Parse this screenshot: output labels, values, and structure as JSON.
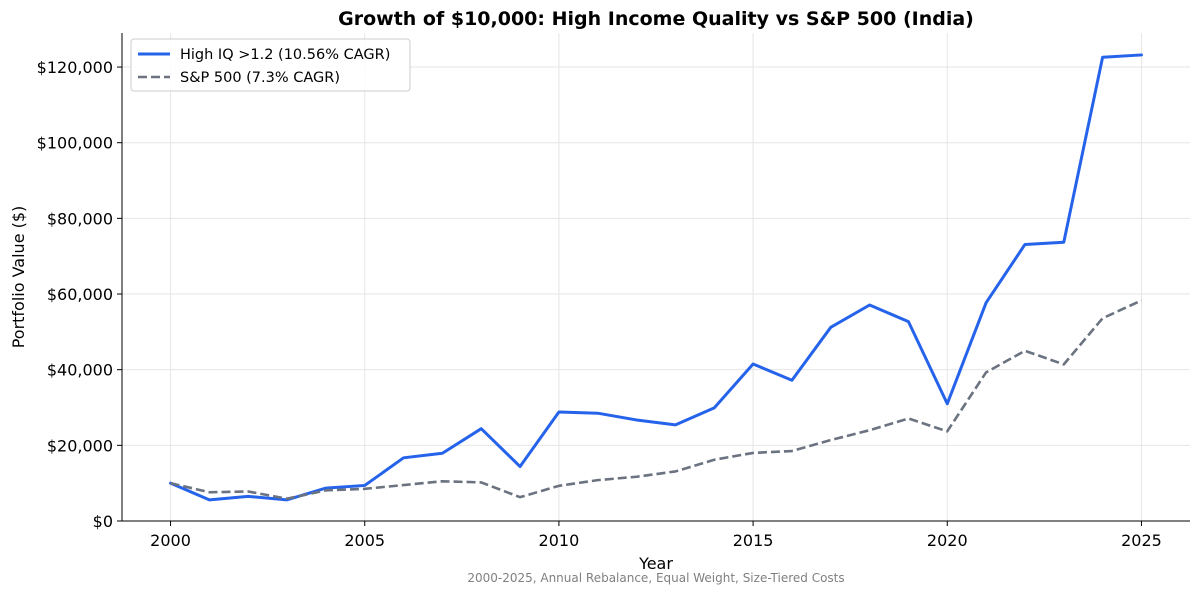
{
  "chart_data": {
    "type": "line",
    "title": "Growth of $10,000: High Income Quality vs S&P 500 (India)",
    "subtitle": "2000-2025, Annual Rebalance, Equal Weight, Size-Tiered Costs",
    "xlabel": "Year",
    "ylabel": "Portfolio Value ($)",
    "xlim": [
      1998.75,
      2026.25
    ],
    "ylim": [
      0,
      129000
    ],
    "x_ticks": [
      2000,
      2005,
      2010,
      2015,
      2020,
      2025
    ],
    "x_tick_labels": [
      "2000",
      "2005",
      "2010",
      "2015",
      "2020",
      "2025"
    ],
    "y_ticks": [
      0,
      20000,
      40000,
      60000,
      80000,
      100000,
      120000
    ],
    "y_tick_labels": [
      "$0",
      "$20,000",
      "$40,000",
      "$60,000",
      "$80,000",
      "$100,000",
      "$120,000"
    ],
    "grid": true,
    "legend_position": "top-left",
    "x": [
      2000,
      2001,
      2002,
      2003,
      2004,
      2005,
      2006,
      2007,
      2008,
      2009,
      2010,
      2011,
      2012,
      2013,
      2014,
      2015,
      2016,
      2017,
      2018,
      2019,
      2020,
      2021,
      2022,
      2023,
      2024,
      2025
    ],
    "series": [
      {
        "name": "High IQ >1.2 (10.56% CAGR)",
        "color": "#2563eb",
        "style": "solid",
        "values": [
          10000,
          5600,
          6500,
          5600,
          8700,
          9400,
          16700,
          17900,
          24400,
          14400,
          28800,
          28500,
          26700,
          25400,
          29900,
          41500,
          37200,
          51200,
          57100,
          52700,
          31000,
          57700,
          73100,
          73700,
          122600,
          123200
        ]
      },
      {
        "name": "S&P 500 (7.3% CAGR)",
        "color": "#6b7280",
        "style": "dashed",
        "values": [
          10000,
          7600,
          7800,
          5900,
          8100,
          8500,
          9500,
          10500,
          10200,
          6300,
          9300,
          10800,
          11700,
          13100,
          16200,
          18000,
          18500,
          21400,
          24000,
          27100,
          23700,
          39300,
          45000,
          41400,
          53600,
          58300
        ]
      }
    ]
  }
}
